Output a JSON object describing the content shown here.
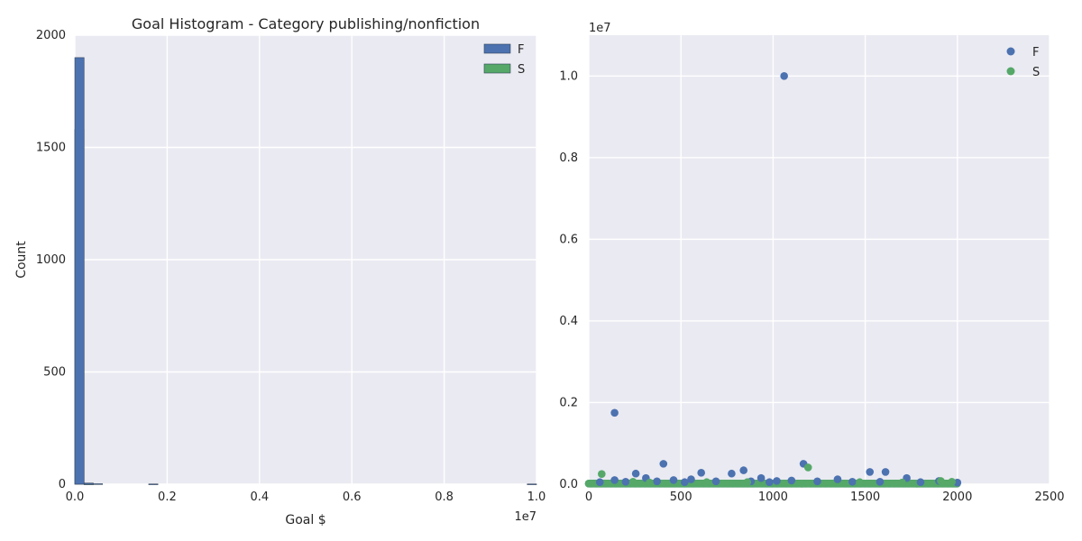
{
  "chart_data": [
    {
      "type": "bar",
      "title": "Goal Histogram - Category publishing/nonfiction",
      "xlabel": "Goal $",
      "ylabel": "Count",
      "x_offset_label": "1e7",
      "xlim": [
        0,
        10000000
      ],
      "ylim": [
        0,
        2000
      ],
      "xticks": [
        "0.0",
        "0.2",
        "0.4",
        "0.6",
        "0.8",
        "1.0"
      ],
      "xtick_values": [
        0,
        2000000,
        4000000,
        6000000,
        8000000,
        10000000
      ],
      "yticks": [
        "0",
        "500",
        "1000",
        "1500",
        "2000"
      ],
      "ytick_values": [
        0,
        500,
        1000,
        1500,
        2000
      ],
      "grid": true,
      "legend_position": "top-right",
      "bin_width": 200000,
      "series": [
        {
          "name": "F",
          "color": "#4c72b0",
          "bins": [
            {
              "x": 0,
              "count": 1900
            },
            {
              "x": 200000,
              "count": 5
            },
            {
              "x": 400000,
              "count": 2
            },
            {
              "x": 1600000,
              "count": 1
            },
            {
              "x": 9800000,
              "count": 1
            }
          ]
        },
        {
          "name": "S",
          "color": "#55a868",
          "bins": [
            {
              "x": 0,
              "count": 1580
            },
            {
              "x": 200000,
              "count": 1
            }
          ]
        }
      ]
    },
    {
      "type": "scatter",
      "title": "",
      "xlabel": "",
      "ylabel": "",
      "y_offset_label": "1e7",
      "xlim": [
        0,
        2500
      ],
      "ylim": [
        0,
        11000000
      ],
      "xticks": [
        "0",
        "500",
        "1000",
        "1500",
        "2000",
        "2500"
      ],
      "xtick_values": [
        0,
        500,
        1000,
        1500,
        2000,
        2500
      ],
      "yticks": [
        "0.0",
        "0.2",
        "0.4",
        "0.6",
        "0.8",
        "1.0"
      ],
      "ytick_values": [
        0,
        2000000,
        4000000,
        6000000,
        8000000,
        10000000
      ],
      "grid": true,
      "legend_position": "top-right",
      "series": [
        {
          "name": "F",
          "color": "#4c72b0",
          "points": [
            [
              1060,
              10000000
            ],
            [
              140,
              1750000
            ],
            [
              405,
              500000
            ],
            [
              1165,
              500000
            ],
            [
              840,
              340000
            ],
            [
              1525,
              300000
            ],
            [
              1610,
              300000
            ],
            [
              610,
              280000
            ],
            [
              255,
              260000
            ],
            [
              775,
              260000
            ],
            [
              310,
              150000
            ],
            [
              935,
              150000
            ],
            [
              1725,
              150000
            ],
            [
              555,
              120000
            ],
            [
              1350,
              120000
            ],
            [
              460,
              100000
            ],
            [
              140,
              100000
            ],
            [
              1100,
              90000
            ],
            [
              1020,
              80000
            ],
            [
              1900,
              80000
            ],
            [
              200,
              60000
            ],
            [
              370,
              70000
            ],
            [
              690,
              70000
            ],
            [
              880,
              70000
            ],
            [
              1240,
              70000
            ],
            [
              1430,
              60000
            ],
            [
              1580,
              60000
            ],
            [
              1800,
              50000
            ],
            [
              60,
              50000
            ],
            [
              2000,
              40000
            ],
            [
              520,
              50000
            ],
            [
              980,
              50000
            ]
          ]
        },
        {
          "name": "S",
          "color": "#55a868",
          "points": [
            [
              1190,
              410000
            ],
            [
              70,
              250000
            ],
            [
              1910,
              80000
            ],
            [
              1970,
              60000
            ],
            [
              240,
              60000
            ],
            [
              640,
              50000
            ],
            [
              860,
              50000
            ],
            [
              1470,
              50000
            ],
            [
              1700,
              40000
            ],
            [
              330,
              40000
            ]
          ]
        }
      ],
      "band": {
        "series": [
          "F",
          "S"
        ],
        "x_range": [
          0,
          2000
        ],
        "y_value": 15000
      }
    }
  ]
}
